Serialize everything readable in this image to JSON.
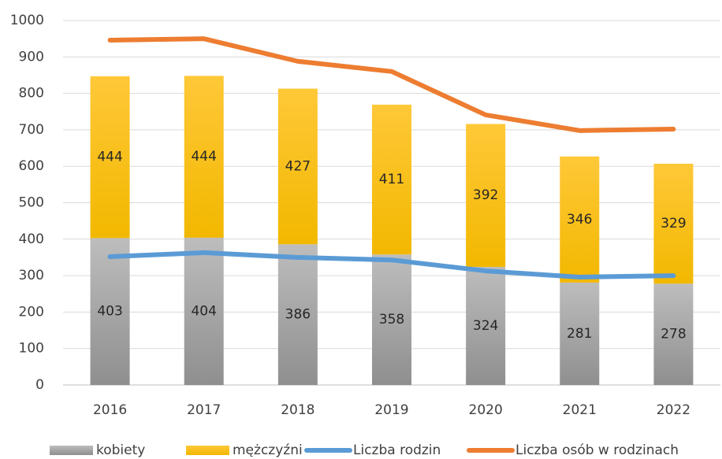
{
  "chart_data": {
    "type": "bar",
    "stacked": true,
    "categories": [
      "2016",
      "2017",
      "2018",
      "2019",
      "2020",
      "2021",
      "2022"
    ],
    "series": [
      {
        "name": "kobiety",
        "type": "bar",
        "color": "#a6a6a6",
        "values": [
          403,
          404,
          386,
          358,
          324,
          281,
          278
        ]
      },
      {
        "name": "mężczyźni",
        "type": "bar",
        "color": "#ffc000",
        "values": [
          444,
          444,
          427,
          411,
          392,
          346,
          329
        ]
      },
      {
        "name": "Liczba rodzin",
        "type": "line",
        "color": "#5b9bd5",
        "values": [
          352,
          363,
          350,
          343,
          313,
          296,
          300
        ]
      },
      {
        "name": "Liczba osób w rodzinach",
        "type": "line",
        "color": "#ed7d31",
        "values": [
          946,
          950,
          888,
          860,
          741,
          698,
          702
        ]
      }
    ],
    "ylim": [
      0,
      1000
    ],
    "yticks": [
      0,
      100,
      200,
      300,
      400,
      500,
      600,
      700,
      800,
      900,
      1000
    ],
    "grid": true,
    "data_labels": true,
    "legend": "bottom"
  }
}
